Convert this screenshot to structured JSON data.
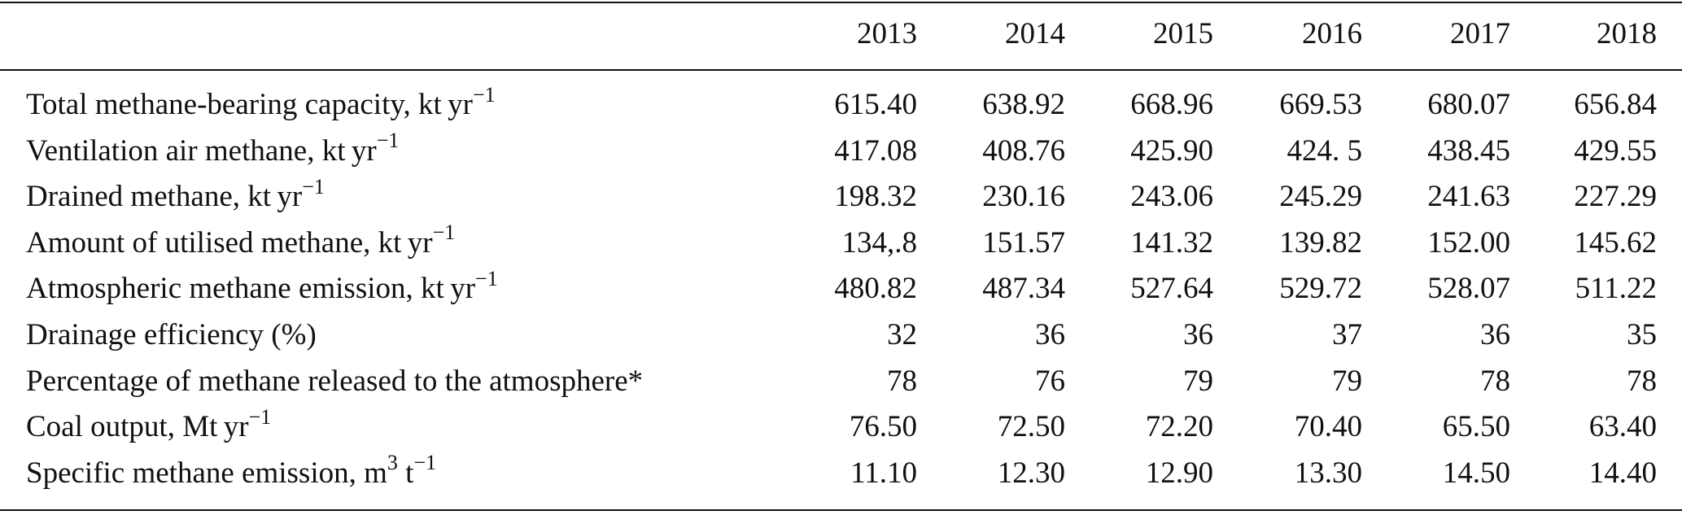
{
  "table": {
    "columns": [
      "2013",
      "2014",
      "2015",
      "2016",
      "2017",
      "2018"
    ],
    "rows": [
      {
        "label": [
          {
            "text": "Total methane-bearing capacity, kt yr"
          },
          {
            "sup": "−1"
          }
        ],
        "values": [
          "615.40",
          "638.92",
          "668.96",
          "669.53",
          "680.07",
          "656.84"
        ]
      },
      {
        "label": [
          {
            "text": "Ventilation air methane, kt yr"
          },
          {
            "sup": "−1"
          }
        ],
        "values": [
          "417.08",
          "408.76",
          "425.90",
          "424. 5",
          "438.45",
          "429.55"
        ]
      },
      {
        "label": [
          {
            "text": "Drained methane, kt yr"
          },
          {
            "sup": "−1"
          }
        ],
        "values": [
          "198.32",
          "230.16",
          "243.06",
          "245.29",
          "241.63",
          "227.29"
        ]
      },
      {
        "label": [
          {
            "text": "Amount of utilised methane, kt yr"
          },
          {
            "sup": "−1"
          }
        ],
        "values": [
          "134,.8",
          "151.57",
          "141.32",
          "139.82",
          "152.00",
          "145.62"
        ]
      },
      {
        "label": [
          {
            "text": "Atmospheric methane emission, kt yr"
          },
          {
            "sup": "−1"
          }
        ],
        "values": [
          "480.82",
          "487.34",
          "527.64",
          "529.72",
          "528.07",
          "511.22"
        ]
      },
      {
        "label": [
          {
            "text": "Drainage efficiency (%)"
          }
        ],
        "values": [
          "32",
          "36",
          "36",
          "37",
          "36",
          "35"
        ]
      },
      {
        "label": [
          {
            "text": "Percentage of methane released to the atmosphere*"
          }
        ],
        "values": [
          "78",
          "76",
          "79",
          "79",
          "78",
          "78"
        ]
      },
      {
        "label": [
          {
            "text": "Coal output, Mt yr"
          },
          {
            "sup": "−1"
          }
        ],
        "values": [
          "76.50",
          "72.50",
          "72.20",
          "70.40",
          "65.50",
          "63.40"
        ]
      },
      {
        "label": [
          {
            "text": "Specific methane emission, m"
          },
          {
            "sup": "3"
          },
          {
            "text": " t"
          },
          {
            "sup": "−1"
          }
        ],
        "values": [
          "11.10",
          "12.30",
          "12.90",
          "13.30",
          "14.50",
          "14.40"
        ]
      }
    ]
  }
}
